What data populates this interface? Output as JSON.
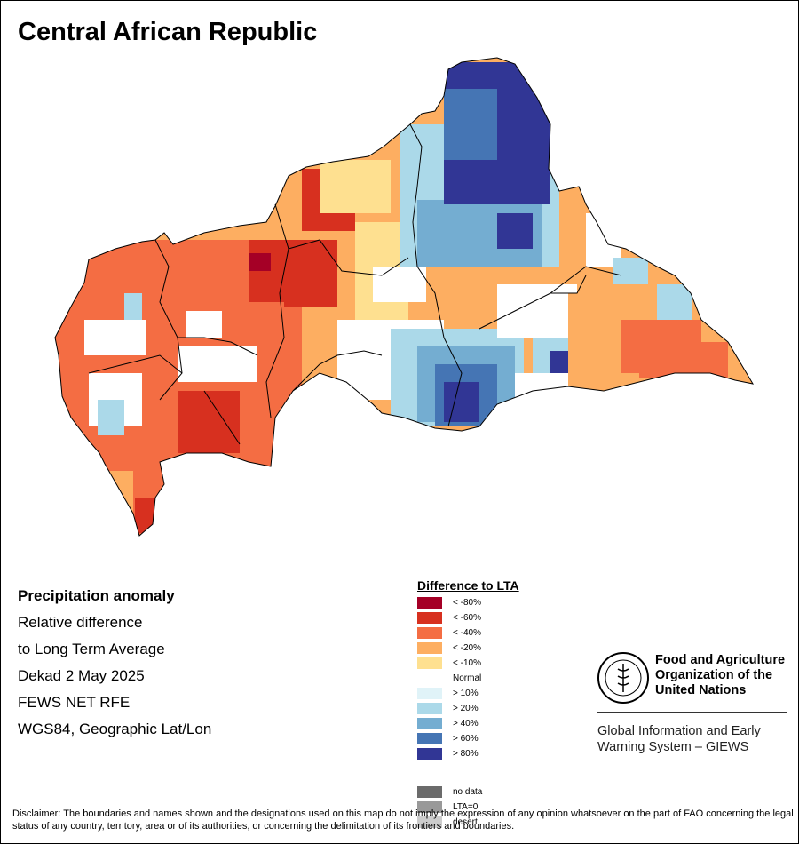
{
  "title": "Central African Republic",
  "info": {
    "heading": "Precipitation anomaly",
    "line1": "Relative difference",
    "line2": "to Long Term Average",
    "line3": "Dekad 2 May 2025",
    "line4": "FEWS NET RFE",
    "line5": "WGS84, Geographic Lat/Lon"
  },
  "legend": {
    "title": "Difference to LTA",
    "items": [
      {
        "label": "< -80%",
        "color": "#a50026"
      },
      {
        "label": "< -60%",
        "color": "#d7301f"
      },
      {
        "label": "< -40%",
        "color": "#f46d43"
      },
      {
        "label": "< -20%",
        "color": "#fdae61"
      },
      {
        "label": "< -10%",
        "color": "#fee090"
      },
      {
        "label": "Normal",
        "color": "#ffffff"
      },
      {
        "label": "> 10%",
        "color": "#e0f3f8"
      },
      {
        "label": "> 20%",
        "color": "#abd9e9"
      },
      {
        "label": "> 40%",
        "color": "#74add1"
      },
      {
        "label": "> 60%",
        "color": "#4575b4"
      },
      {
        "label": "> 80%",
        "color": "#313695"
      }
    ],
    "extra": [
      {
        "label": "no data",
        "color": "#6b6b6b"
      },
      {
        "label": "LTA=0",
        "color": "#999999"
      },
      {
        "label": "desert",
        "color": "#cccccc"
      }
    ]
  },
  "fao": {
    "logo_text": "FAO",
    "logo_motto": "FIAT PANIS",
    "name_line1": "Food and Agriculture",
    "name_line2": "Organization of the",
    "name_line3": "United Nations",
    "giews_line1": "Global Information and Early",
    "giews_line2": "Warning System – GIEWS"
  },
  "disclaimer": "Disclaimer: The boundaries and names shown and the designations used on this map do not imply the expression of any opinion whatsoever on the part of FAO concerning the legal status of any country, territory, area or of its authorities, or concerning the delimitation of its frontiers and boundaries."
}
